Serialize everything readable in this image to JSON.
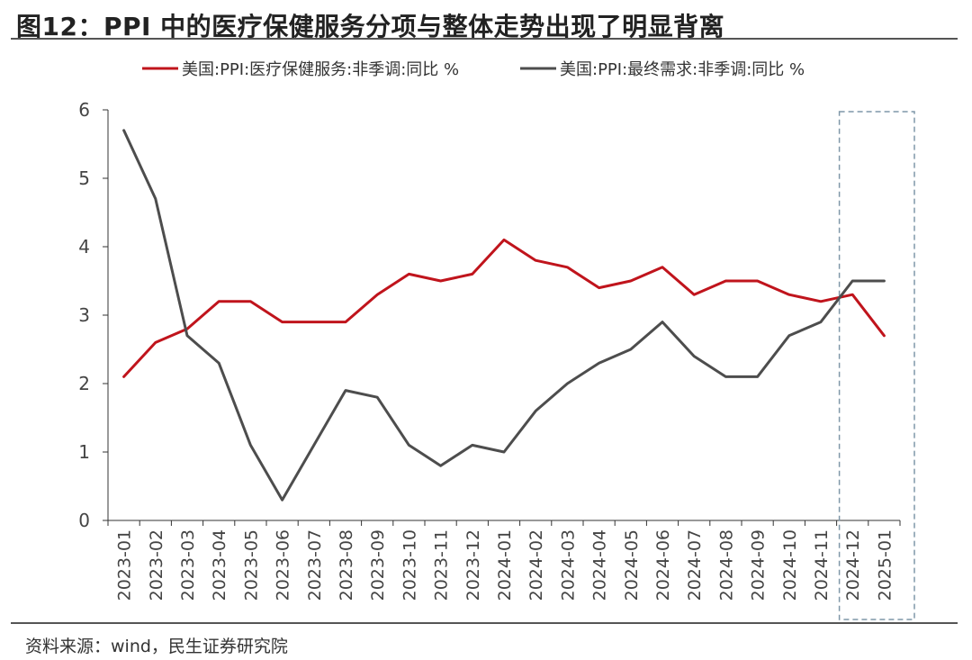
{
  "figure": {
    "title": "图12：PPI 中的医疗保健服务分项与整体走势出现了明显背离",
    "source": "资料来源：wind，民生证券研究院"
  },
  "chart_data": {
    "type": "line",
    "title": "图12：PPI 中的医疗保健服务分项与整体走势出现了明显背离",
    "xlabel": "",
    "ylabel": "",
    "ylim": [
      0,
      6
    ],
    "yticks": [
      "0",
      "1",
      "2",
      "3",
      "4",
      "5",
      "6"
    ],
    "categories": [
      "2023-01",
      "2023-02",
      "2023-03",
      "2023-04",
      "2023-05",
      "2023-06",
      "2023-07",
      "2023-08",
      "2023-09",
      "2023-10",
      "2023-11",
      "2023-12",
      "2024-01",
      "2024-02",
      "2024-03",
      "2024-04",
      "2024-05",
      "2024-06",
      "2024-07",
      "2024-08",
      "2024-09",
      "2024-10",
      "2024-11",
      "2024-12",
      "2025-01"
    ],
    "series": [
      {
        "name": "美国:PPI:医疗保健服务:非季调:同比 %",
        "color": "#C0141C",
        "values": [
          2.1,
          2.6,
          2.8,
          3.2,
          3.2,
          2.9,
          2.9,
          2.9,
          3.3,
          3.6,
          3.5,
          3.6,
          4.1,
          3.8,
          3.7,
          3.4,
          3.5,
          3.7,
          3.3,
          3.5,
          3.5,
          3.3,
          3.2,
          3.3,
          2.7
        ]
      },
      {
        "name": "美国:PPI:最终需求:非季调:同比 %",
        "color": "#4D4D4D",
        "values": [
          5.7,
          4.7,
          2.7,
          2.3,
          1.1,
          0.3,
          1.1,
          1.9,
          1.8,
          1.1,
          0.8,
          1.1,
          1.0,
          1.6,
          2.0,
          2.3,
          2.5,
          2.9,
          2.4,
          2.1,
          2.1,
          2.7,
          2.9,
          3.5,
          3.5
        ]
      }
    ],
    "highlight": {
      "categories": [
        "2024-12",
        "2025-01"
      ],
      "color": "#7F97A8"
    },
    "legend": "top"
  }
}
